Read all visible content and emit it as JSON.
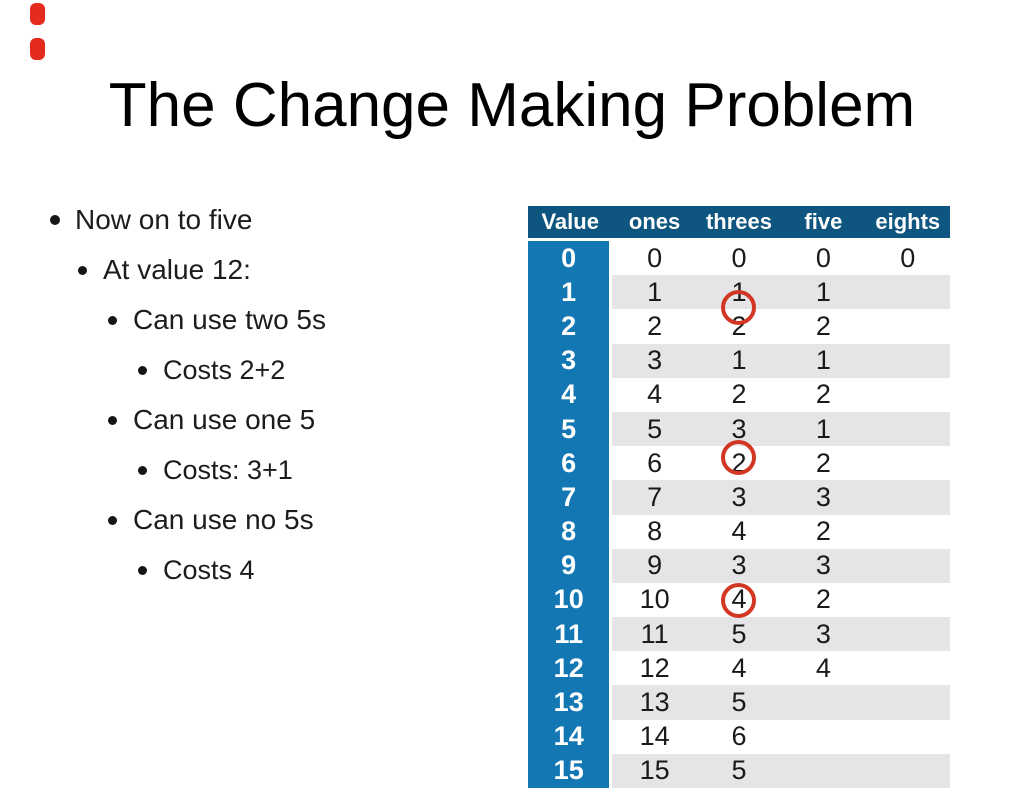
{
  "slide": {
    "title": "The Change Making Problem",
    "bullets": [
      {
        "level": 1,
        "text": "Now on to five"
      },
      {
        "level": 2,
        "text": "At value 12:"
      },
      {
        "level": 3,
        "text": "Can use two 5s"
      },
      {
        "level": 4,
        "text": "Costs 2+2"
      },
      {
        "level": 3,
        "text": "Can use one 5"
      },
      {
        "level": 4,
        "text": "Costs: 3+1"
      },
      {
        "level": 3,
        "text": "Can use no 5s"
      },
      {
        "level": 4,
        "text": "Costs 4"
      }
    ]
  },
  "chart_data": {
    "type": "table",
    "headers": [
      "Value",
      "ones",
      "threes",
      "five",
      "eights"
    ],
    "rows": [
      [
        "0",
        "0",
        "0",
        "0",
        "0"
      ],
      [
        "1",
        "1",
        "1",
        "1",
        ""
      ],
      [
        "2",
        "2",
        "2",
        "2",
        ""
      ],
      [
        "3",
        "3",
        "1",
        "1",
        ""
      ],
      [
        "4",
        "4",
        "2",
        "2",
        ""
      ],
      [
        "5",
        "5",
        "3",
        "1",
        ""
      ],
      [
        "6",
        "6",
        "2",
        "2",
        ""
      ],
      [
        "7",
        "7",
        "3",
        "3",
        ""
      ],
      [
        "8",
        "8",
        "4",
        "2",
        ""
      ],
      [
        "9",
        "9",
        "3",
        "3",
        ""
      ],
      [
        "10",
        "10",
        "4",
        "2",
        ""
      ],
      [
        "11",
        "11",
        "5",
        "3",
        ""
      ],
      [
        "12",
        "12",
        "4",
        "4",
        ""
      ],
      [
        "13",
        "13",
        "5",
        "",
        ""
      ],
      [
        "14",
        "14",
        "6",
        "",
        ""
      ],
      [
        "15",
        "15",
        "5",
        "",
        ""
      ]
    ],
    "annotations": [
      {
        "shape": "red-circle",
        "column": "threes",
        "location": "between value 1 and value 2"
      },
      {
        "shape": "red-circle",
        "column": "threes",
        "location": "value 6"
      },
      {
        "shape": "red-circle",
        "column": "threes",
        "location": "value 10"
      }
    ]
  },
  "colors": {
    "table_header_bg": "#0e5580",
    "value_column_bg": "#1377b4",
    "alt_row_bg": "#e5e5e7",
    "annotation_red": "#d13723",
    "corner_mark_red": "#e32b1e"
  }
}
